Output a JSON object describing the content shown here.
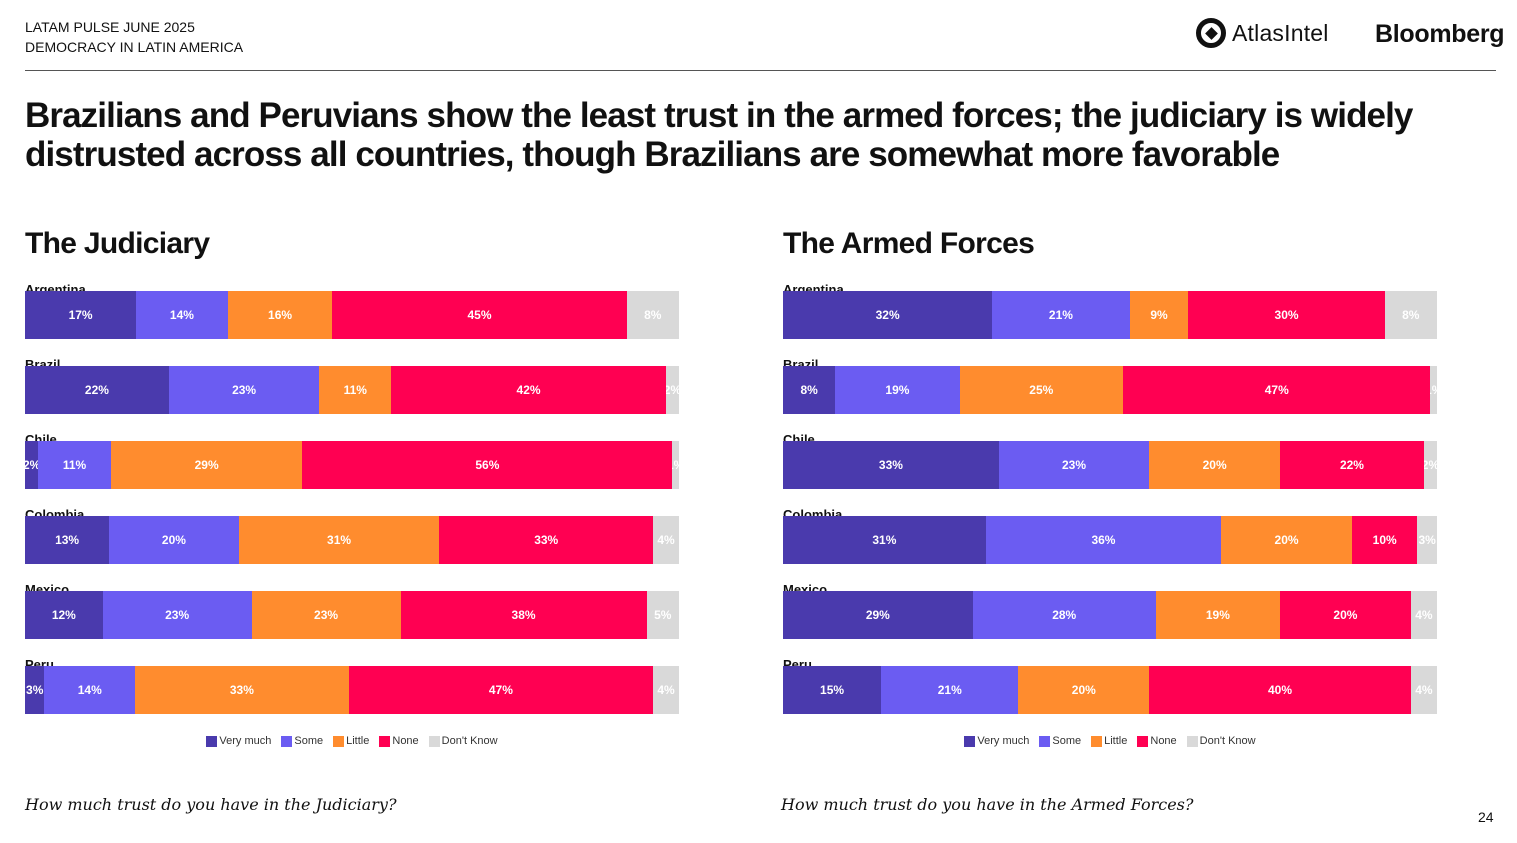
{
  "header": {
    "line1": "LATAM PULSE JUNE 2025",
    "line2": "DEMOCRACY IN LATIN AMERICA",
    "brand_atlas": "AtlasIntel",
    "brand_bloomberg": "Bloomberg"
  },
  "headline": "Brazilians and Peruvians show the least trust in the armed forces; the judiciary is widely distrusted across all countries, though Brazilians are somewhat more favorable",
  "legend": [
    {
      "label": "Very much",
      "color": "#4a3aad"
    },
    {
      "label": "Some",
      "color": "#6b5cf2"
    },
    {
      "label": "Little",
      "color": "#ff8c2e"
    },
    {
      "label": "None",
      "color": "#ff0052"
    },
    {
      "label": "Don't Know",
      "color": "#d9d9d9"
    }
  ],
  "chart_data": [
    {
      "type": "bar",
      "orientation": "horizontal-stacked-100",
      "title": "The Judiciary",
      "question": "How much trust do you have in the Judiciary?",
      "categories": [
        "Argentina",
        "Brazil",
        "Chile",
        "Colombia",
        "Mexico",
        "Peru"
      ],
      "series": [
        {
          "name": "Very much",
          "values": [
            17,
            22,
            2,
            13,
            12,
            3
          ]
        },
        {
          "name": "Some",
          "values": [
            14,
            23,
            11,
            20,
            23,
            14
          ]
        },
        {
          "name": "Little",
          "values": [
            16,
            11,
            29,
            31,
            23,
            33
          ]
        },
        {
          "name": "None",
          "values": [
            45,
            42,
            56,
            33,
            38,
            47
          ]
        },
        {
          "name": "Don't Know",
          "values": [
            8,
            2,
            1,
            4,
            5,
            4
          ]
        }
      ]
    },
    {
      "type": "bar",
      "orientation": "horizontal-stacked-100",
      "title": "The Armed Forces",
      "question": "How much trust do you have in the Armed Forces?",
      "categories": [
        "Argentina",
        "Brazil",
        "Chile",
        "Colombia",
        "Mexico",
        "Peru"
      ],
      "series": [
        {
          "name": "Very much",
          "values": [
            32,
            8,
            33,
            31,
            29,
            15
          ]
        },
        {
          "name": "Some",
          "values": [
            21,
            19,
            23,
            36,
            28,
            21
          ]
        },
        {
          "name": "Little",
          "values": [
            9,
            25,
            20,
            20,
            19,
            20
          ]
        },
        {
          "name": "None",
          "values": [
            30,
            47,
            22,
            10,
            20,
            40
          ]
        },
        {
          "name": "Don't Know",
          "values": [
            8,
            1,
            2,
            3,
            4,
            4
          ]
        }
      ]
    }
  ],
  "page_number": "24"
}
